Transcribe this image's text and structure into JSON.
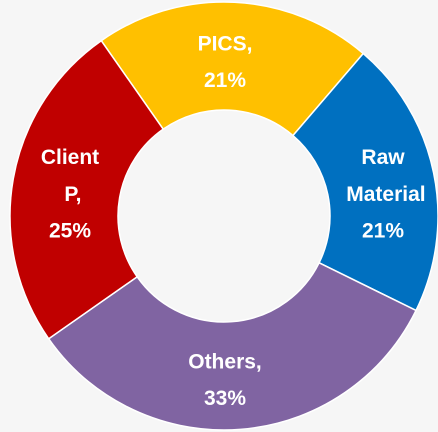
{
  "chart_data": {
    "type": "donut",
    "categories": [
      "PICS,",
      "Raw Material",
      "Others,",
      "Client P,"
    ],
    "values": [
      21,
      21,
      33,
      25
    ],
    "value_labels": [
      "21%",
      "21%",
      "33%",
      "25%"
    ],
    "colors": [
      "#ffc000",
      "#0070c0",
      "#8064a2",
      "#c00000"
    ]
  }
}
